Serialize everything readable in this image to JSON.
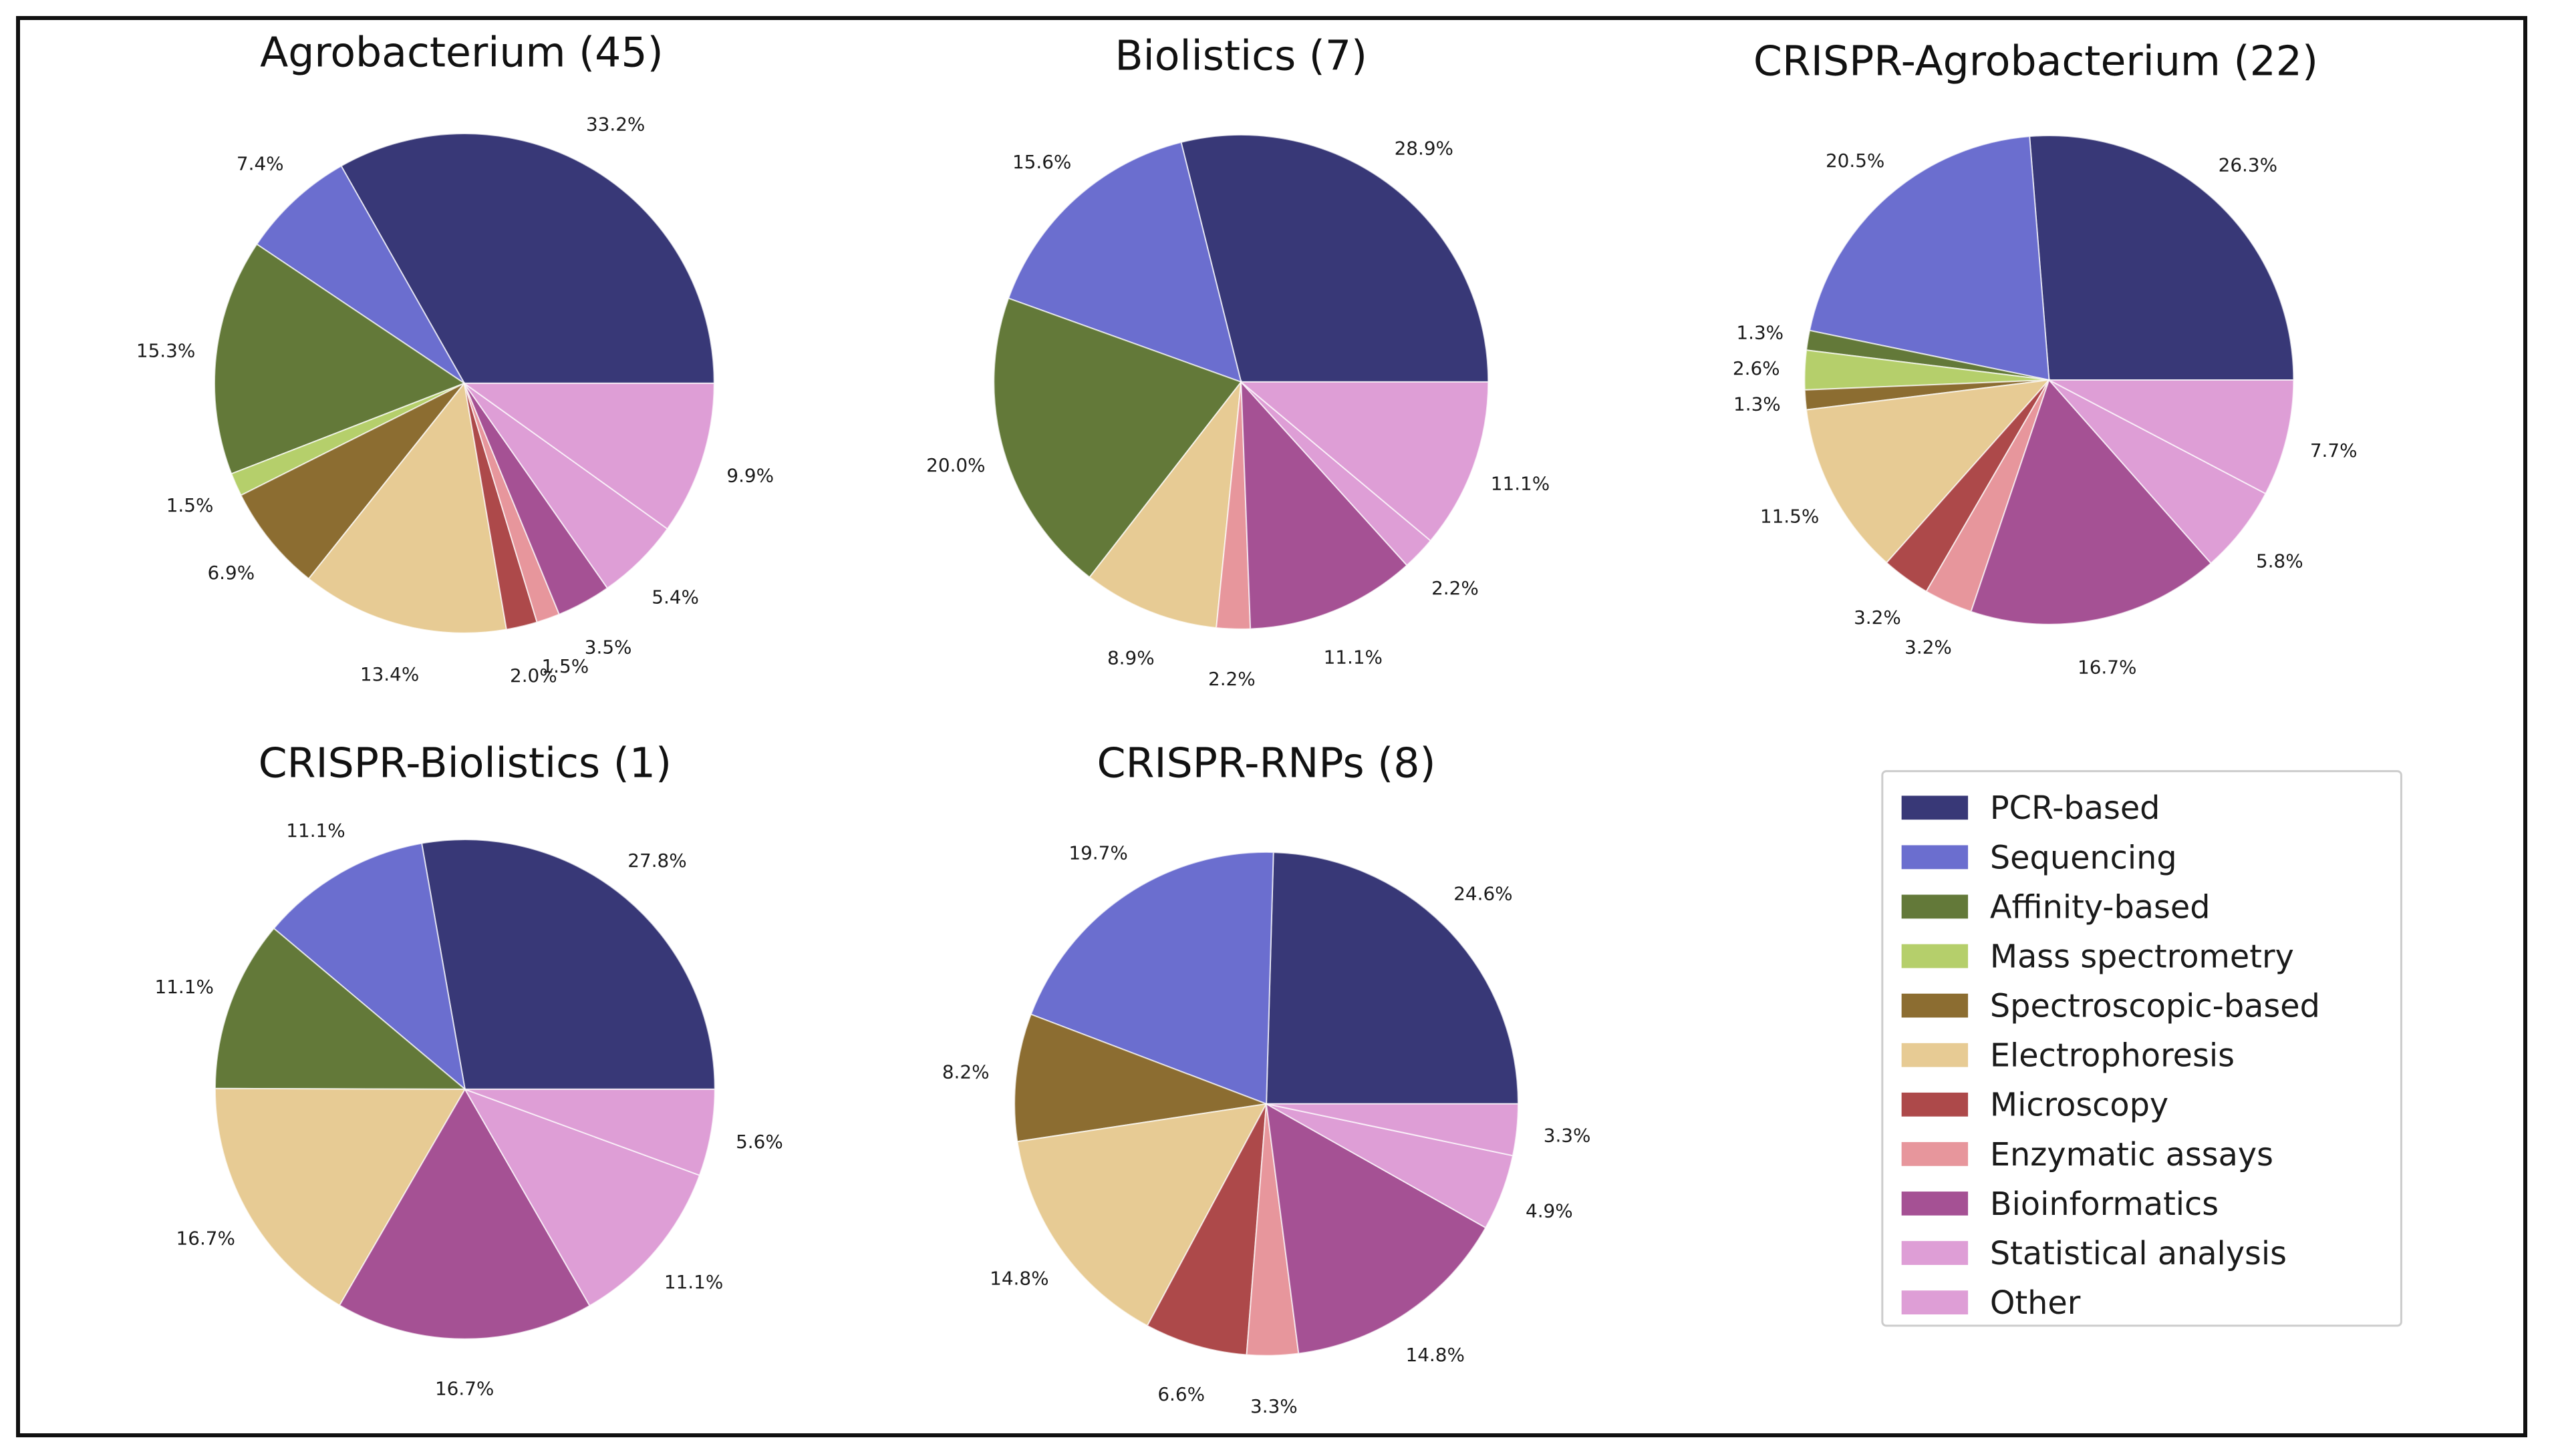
{
  "chart_data": {
    "type": "pie",
    "start_angle_deg": 0,
    "direction": "counterclockwise",
    "legend": {
      "placement": "bottom-right",
      "entries": [
        {
          "label": "PCR-based",
          "color": "#383877"
        },
        {
          "label": "Sequencing",
          "color": "#6b6ecf"
        },
        {
          "label": "Affinity-based",
          "color": "#637939"
        },
        {
          "label": "Mass spectrometry",
          "color": "#b5cf6b"
        },
        {
          "label": "Spectroscopic-based",
          "color": "#8c6d31"
        },
        {
          "label": "Electrophoresis",
          "color": "#e7cb94"
        },
        {
          "label": "Microscopy",
          "color": "#ad494a"
        },
        {
          "label": "Enzymatic assays",
          "color": "#e7969c"
        },
        {
          "label": "Bioinformatics",
          "color": "#a55194"
        },
        {
          "label": "Statistical analysis",
          "color": "#de9ed6"
        },
        {
          "label": "Other",
          "color": "#de9ed6"
        }
      ]
    },
    "pies": [
      {
        "title": "Agrobacterium (45)",
        "slices": [
          {
            "category": "PCR-based",
            "value": 33.2,
            "label": "33.2%"
          },
          {
            "category": "Sequencing",
            "value": 7.4,
            "label": "7.4%"
          },
          {
            "category": "Affinity-based",
            "value": 15.3,
            "label": "15.3%"
          },
          {
            "category": "Mass spectrometry",
            "value": 1.5,
            "label": "1.5%"
          },
          {
            "category": "Spectroscopic-based",
            "value": 6.9,
            "label": "6.9%"
          },
          {
            "category": "Electrophoresis",
            "value": 13.4,
            "label": "13.4%"
          },
          {
            "category": "Microscopy",
            "value": 2.0,
            "label": "2.0%"
          },
          {
            "category": "Enzymatic assays",
            "value": 1.5,
            "label": "1.5%"
          },
          {
            "category": "Bioinformatics",
            "value": 3.5,
            "label": "3.5%"
          },
          {
            "category": "Statistical analysis",
            "value": 5.4,
            "label": "5.4%"
          },
          {
            "category": "Other",
            "value": 9.9,
            "label": "9.9%"
          }
        ]
      },
      {
        "title": "Biolistics (7)",
        "slices": [
          {
            "category": "PCR-based",
            "value": 28.9,
            "label": "28.9%"
          },
          {
            "category": "Sequencing",
            "value": 15.6,
            "label": "15.6%"
          },
          {
            "category": "Affinity-based",
            "value": 20.0,
            "label": "20.0%"
          },
          {
            "category": "Electrophoresis",
            "value": 8.9,
            "label": "8.9%"
          },
          {
            "category": "Enzymatic assays",
            "value": 2.2,
            "label": "2.2%"
          },
          {
            "category": "Bioinformatics",
            "value": 11.1,
            "label": "11.1%"
          },
          {
            "category": "Statistical analysis",
            "value": 2.2,
            "label": "2.2%"
          },
          {
            "category": "Other",
            "value": 11.1,
            "label": "11.1%"
          }
        ]
      },
      {
        "title": "CRISPR-Agrobacterium (22)",
        "slices": [
          {
            "category": "PCR-based",
            "value": 26.3,
            "label": "26.3%"
          },
          {
            "category": "Sequencing",
            "value": 20.5,
            "label": "20.5%"
          },
          {
            "category": "Affinity-based",
            "value": 1.3,
            "label": "1.3%"
          },
          {
            "category": "Mass spectrometry",
            "value": 2.6,
            "label": "2.6%"
          },
          {
            "category": "Spectroscopic-based",
            "value": 1.3,
            "label": "1.3%"
          },
          {
            "category": "Electrophoresis",
            "value": 11.5,
            "label": "11.5%"
          },
          {
            "category": "Microscopy",
            "value": 3.2,
            "label": "3.2%"
          },
          {
            "category": "Enzymatic assays",
            "value": 3.2,
            "label": "3.2%"
          },
          {
            "category": "Bioinformatics",
            "value": 16.7,
            "label": "16.7%"
          },
          {
            "category": "Statistical analysis",
            "value": 5.8,
            "label": "5.8%"
          },
          {
            "category": "Other",
            "value": 7.7,
            "label": "7.7%"
          }
        ]
      },
      {
        "title": "CRISPR-Biolistics (1)",
        "slices": [
          {
            "category": "PCR-based",
            "value": 27.8,
            "label": "27.8%"
          },
          {
            "category": "Sequencing",
            "value": 11.1,
            "label": "11.1%"
          },
          {
            "category": "Affinity-based",
            "value": 11.1,
            "label": "11.1%"
          },
          {
            "category": "Electrophoresis",
            "value": 16.7,
            "label": "16.7%"
          },
          {
            "category": "Bioinformatics",
            "value": 16.7,
            "label": "16.7%"
          },
          {
            "category": "Statistical analysis",
            "value": 11.1,
            "label": "11.1%"
          },
          {
            "category": "Other",
            "value": 5.6,
            "label": "5.6%"
          }
        ]
      },
      {
        "title": "CRISPR-RNPs (8)",
        "slices": [
          {
            "category": "PCR-based",
            "value": 24.6,
            "label": "24.6%"
          },
          {
            "category": "Sequencing",
            "value": 19.7,
            "label": "19.7%"
          },
          {
            "category": "Spectroscopic-based",
            "value": 8.2,
            "label": "8.2%"
          },
          {
            "category": "Electrophoresis",
            "value": 14.8,
            "label": "14.8%"
          },
          {
            "category": "Microscopy",
            "value": 6.6,
            "label": "6.6%"
          },
          {
            "category": "Enzymatic assays",
            "value": 3.3,
            "label": "3.3%"
          },
          {
            "category": "Bioinformatics",
            "value": 14.8,
            "label": "14.8%"
          },
          {
            "category": "Statistical analysis",
            "value": 4.9,
            "label": "4.9%"
          },
          {
            "category": "Other",
            "value": 3.3,
            "label": "3.3%"
          }
        ]
      }
    ]
  }
}
